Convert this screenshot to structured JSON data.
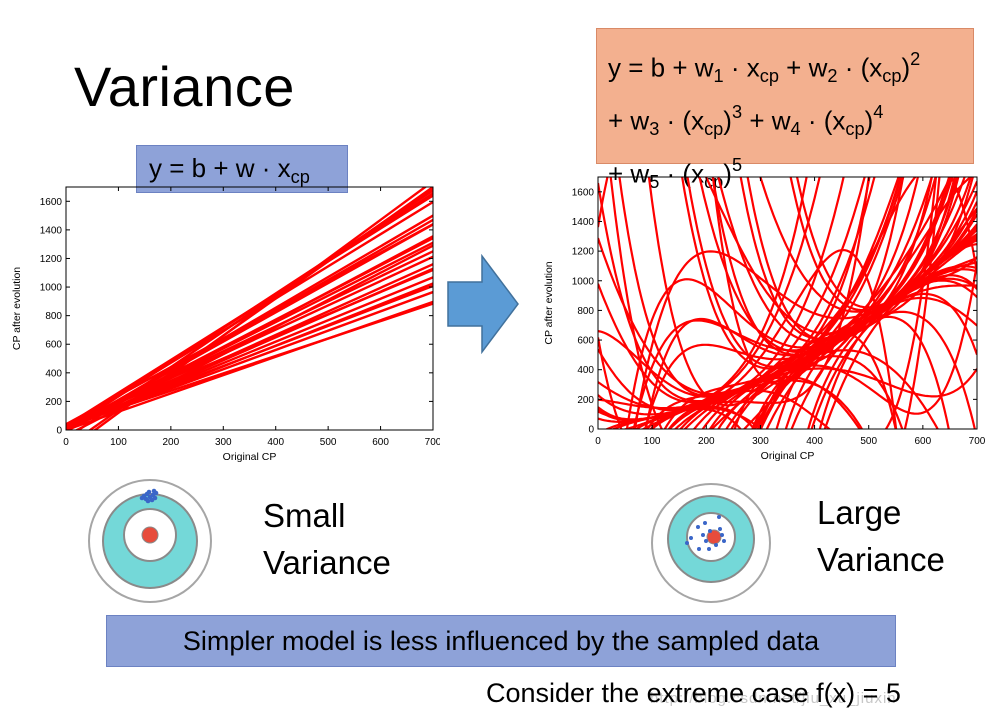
{
  "slide": {
    "title": "Variance",
    "conclusion": "Simpler model is less influenced by the sampled data",
    "extreme_case": "Consider the extreme case f(x) = 5",
    "watermark": "http://blog.csdn.net/jiu_xu_jiuxin"
  },
  "equation_left": {
    "y": "y = b + w ",
    "dot": "·",
    "x": " x",
    "sub": "cp"
  },
  "equation_right": {
    "line1": [
      "y = b + w",
      "1",
      " · x",
      "cp",
      " + w",
      "2",
      " · (x",
      "cp",
      ")",
      "2"
    ],
    "line2": [
      "+ w",
      "3",
      " · (x",
      "cp",
      ")",
      "3",
      " + w",
      "4",
      " · (x",
      "cp",
      ")",
      "4"
    ],
    "line3": [
      "+ w",
      "5",
      " · (x",
      "cp",
      ")",
      "5"
    ]
  },
  "labels": {
    "small": [
      "Small",
      "Variance"
    ],
    "large": [
      "Large",
      "Variance"
    ]
  },
  "colors": {
    "curve": "#ff0000",
    "arrow": "#5b9bd5",
    "eq_blue": "#8ea2d8",
    "eq_orange": "#f3b08f",
    "ring_teal": "#74d8d8",
    "ring_gray": "#a6a6a6",
    "dot_blue": "#3a66c8",
    "bull_red": "#e74c3c"
  },
  "chart_data": [
    {
      "type": "line",
      "model": "linear",
      "xlabel": "Original CP",
      "ylabel": "CP after evolution",
      "xlim": [
        0,
        700
      ],
      "ylim": [
        0,
        1700
      ],
      "xticks": [
        0,
        100,
        200,
        300,
        400,
        500,
        600,
        700
      ],
      "yticks": [
        0,
        200,
        400,
        600,
        800,
        1000,
        1200,
        1400,
        1600
      ],
      "series_note": "many fitted lines y = b + w*x",
      "lines": [
        {
          "b": 10,
          "w": 2.35
        },
        {
          "b": 30,
          "w": 2.3
        },
        {
          "b": -5,
          "w": 2.4
        },
        {
          "b": 20,
          "w": 2.25
        },
        {
          "b": 0,
          "w": 2.1
        },
        {
          "b": 40,
          "w": 2.0
        },
        {
          "b": -10,
          "w": 1.95
        },
        {
          "b": 15,
          "w": 1.85
        },
        {
          "b": 25,
          "w": 1.75
        },
        {
          "b": 5,
          "w": 1.65
        },
        {
          "b": 35,
          "w": 1.55
        },
        {
          "b": 10,
          "w": 1.45
        },
        {
          "b": 20,
          "w": 1.35
        },
        {
          "b": 0,
          "w": 1.28
        },
        {
          "b": 30,
          "w": 1.22
        },
        {
          "b": -5,
          "w": 2.15
        },
        {
          "b": 12,
          "w": 1.9
        },
        {
          "b": 22,
          "w": 1.7
        },
        {
          "b": 8,
          "w": 1.6
        },
        {
          "b": 18,
          "w": 1.5
        },
        {
          "b": 28,
          "w": 1.4
        },
        {
          "b": 3,
          "w": 2.05
        },
        {
          "b": -120,
          "w": 2.6
        },
        {
          "b": -150,
          "w": 2.7
        },
        {
          "b": -60,
          "w": 2.5
        },
        {
          "b": -40,
          "w": 1.9
        }
      ]
    },
    {
      "type": "line",
      "model": "degree-5 polynomial",
      "xlabel": "Original CP",
      "ylabel": "CP after evolution",
      "xlim": [
        0,
        700
      ],
      "ylim": [
        0,
        1700
      ],
      "xticks": [
        0,
        100,
        200,
        300,
        400,
        500,
        600,
        700
      ],
      "yticks": [
        0,
        200,
        400,
        600,
        800,
        1000,
        1200,
        1400,
        1600
      ],
      "series_note": "many fitted 5th-order curves with high variance"
    }
  ]
}
